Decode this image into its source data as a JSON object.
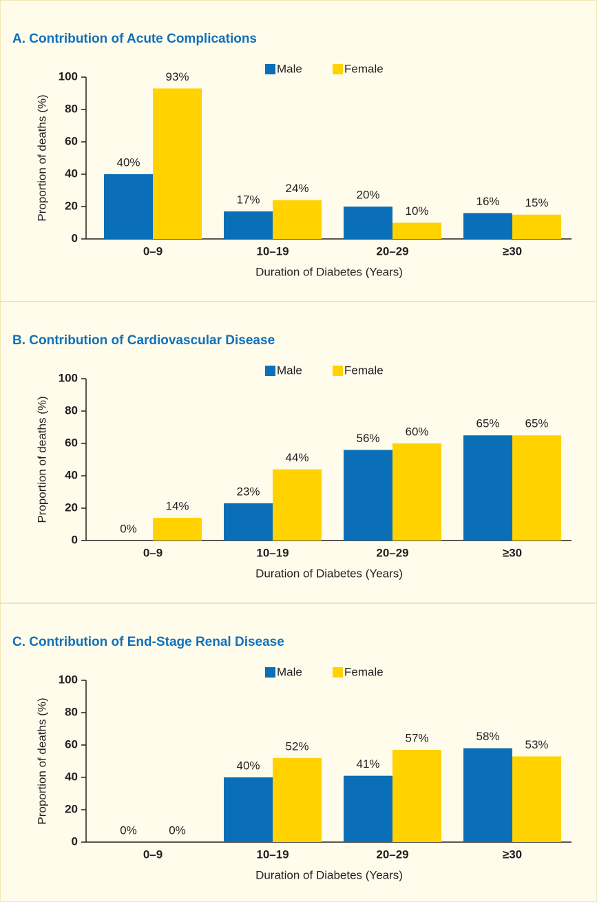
{
  "chart_data": [
    {
      "type": "bar",
      "title": "A. Contribution of Acute Complications",
      "categories": [
        "0–9",
        "10–19",
        "20–29",
        "≥30"
      ],
      "series": [
        {
          "name": "Male",
          "color": "#0b6fb8",
          "values": [
            40,
            17,
            20,
            16
          ],
          "value_labels": [
            "40%",
            "17%",
            "20%",
            "16%"
          ]
        },
        {
          "name": "Female",
          "color": "#ffd200",
          "values": [
            93,
            24,
            10,
            15
          ],
          "value_labels": [
            "93%",
            "24%",
            "10%",
            "15%"
          ]
        }
      ],
      "ylim": [
        0,
        100
      ],
      "yticks": [
        0,
        20,
        40,
        60,
        80,
        100
      ],
      "ylabel": "Proportion of deaths (%)",
      "xlabel": "Duration of Diabetes (Years)"
    },
    {
      "type": "bar",
      "title": "B. Contribution of Cardiovascular Disease",
      "categories": [
        "0–9",
        "10–19",
        "20–29",
        "≥30"
      ],
      "series": [
        {
          "name": "Male",
          "color": "#0b6fb8",
          "values": [
            0,
            23,
            56,
            65
          ],
          "value_labels": [
            "0%",
            "23%",
            "56%",
            "65%"
          ]
        },
        {
          "name": "Female",
          "color": "#ffd200",
          "values": [
            14,
            44,
            60,
            65
          ],
          "value_labels": [
            "14%",
            "44%",
            "60%",
            "65%"
          ]
        }
      ],
      "ylim": [
        0,
        100
      ],
      "yticks": [
        0,
        20,
        40,
        60,
        80,
        100
      ],
      "ylabel": "Proportion of deaths (%)",
      "xlabel": "Duration of Diabetes (Years)"
    },
    {
      "type": "bar",
      "title": "C. Contribution of End-Stage Renal Disease",
      "categories": [
        "0–9",
        "10–19",
        "20–29",
        "≥30"
      ],
      "series": [
        {
          "name": "Male",
          "color": "#0b6fb8",
          "values": [
            0,
            40,
            41,
            58
          ],
          "value_labels": [
            "0%",
            "40%",
            "41%",
            "58%"
          ]
        },
        {
          "name": "Female",
          "color": "#ffd200",
          "values": [
            0,
            52,
            57,
            53
          ],
          "value_labels": [
            "0%",
            "52%",
            "57%",
            "53%"
          ]
        }
      ],
      "ylim": [
        0,
        100
      ],
      "yticks": [
        0,
        20,
        40,
        60,
        80,
        100
      ],
      "ylabel": "Proportion of deaths (%)",
      "xlabel": "Duration of Diabetes (Years)"
    }
  ]
}
